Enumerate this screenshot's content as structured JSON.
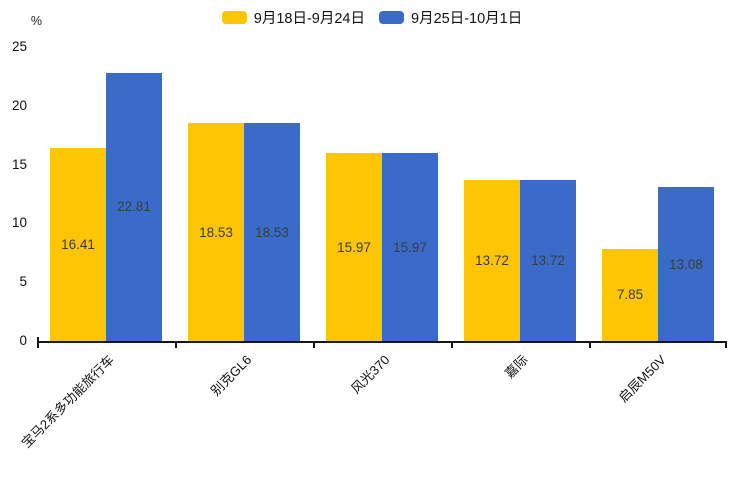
{
  "chart_data": {
    "type": "bar",
    "title": "",
    "xlabel": "",
    "ylabel": "%",
    "ylim": [
      0,
      25
    ],
    "yticks": [
      0,
      5,
      10,
      15,
      20,
      25
    ],
    "grid": false,
    "legend_position": "top-center",
    "value_labels": "inside-center",
    "categories": [
      "宝马2系多功能旅行车",
      "别克GL6",
      "风光370",
      "嘉际",
      "启辰M50V"
    ],
    "series": [
      {
        "name": "9月18日-9月24日",
        "color": "#fdc504",
        "values": [
          16.41,
          18.53,
          15.97,
          13.72,
          7.85
        ]
      },
      {
        "name": "9月25日-10月1日",
        "color": "#3a6bc8",
        "values": [
          22.81,
          18.53,
          15.97,
          13.72,
          13.08
        ]
      }
    ],
    "colors": {
      "background": "#ffffff",
      "axis_line": "#161616",
      "axis_text": "#111111",
      "value_label_text": "#3c3c3c"
    }
  }
}
